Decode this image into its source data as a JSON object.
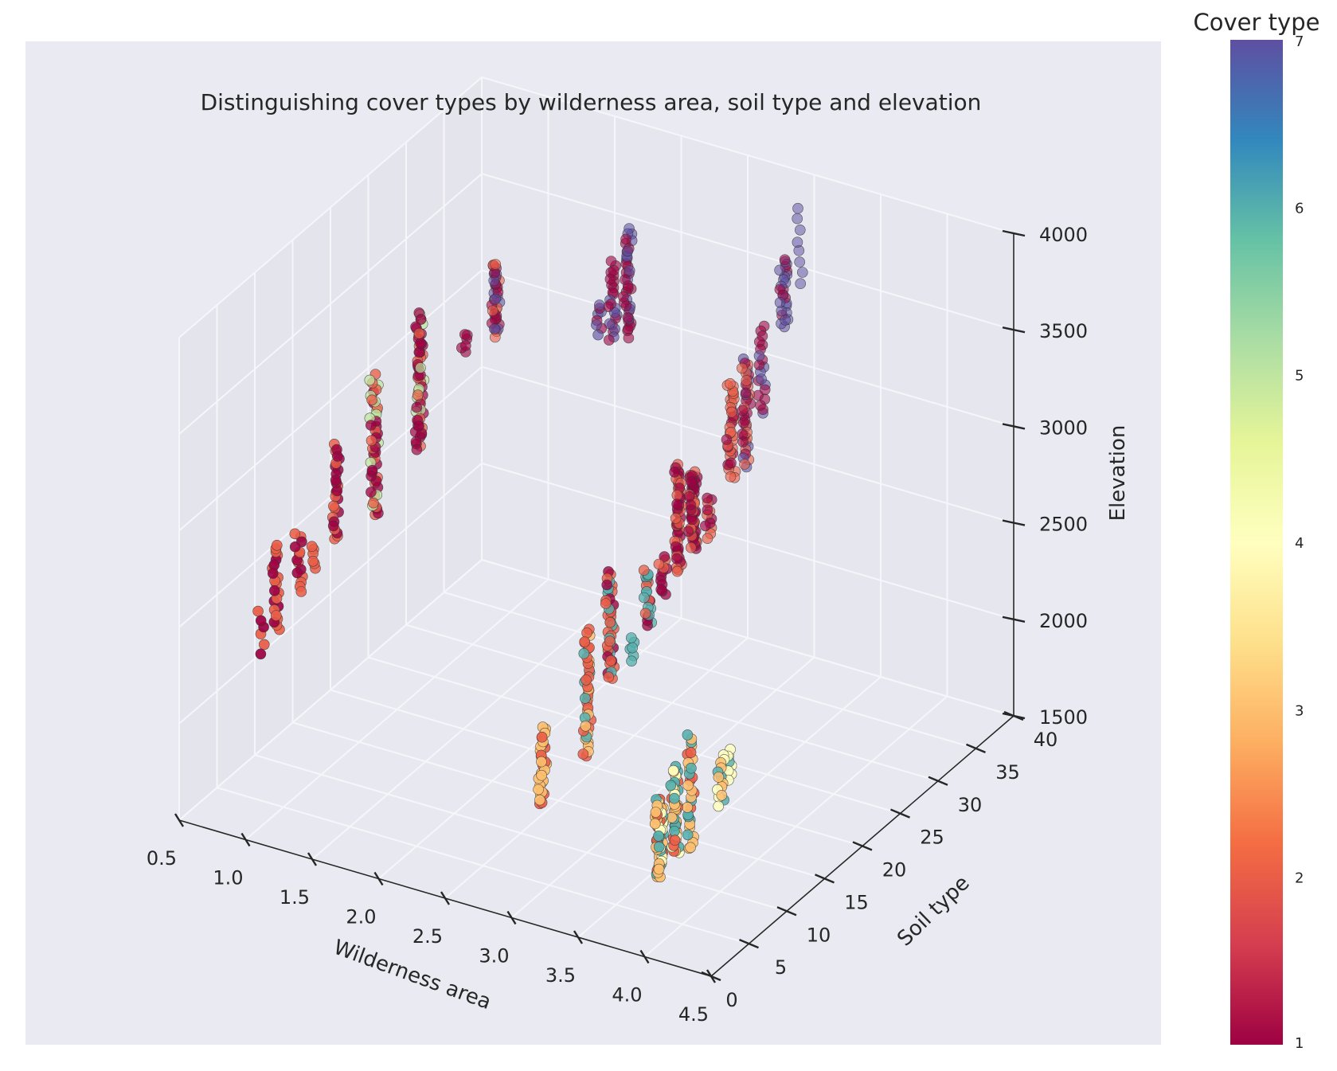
{
  "chart_data": {
    "type": "scatter",
    "title": "Distinguishing cover types by wilderness area, soil type and elevation",
    "xlabel": "Wilderness area",
    "ylabel": "Soil type",
    "zlabel": "Elevation",
    "colorbar_label": "Cover type",
    "xlim": [
      0.5,
      4.5
    ],
    "ylim": [
      0,
      40
    ],
    "zlim": [
      1500,
      4000
    ],
    "clim": [
      1,
      7
    ],
    "x_ticks": [
      "0.5",
      "1.0",
      "1.5",
      "2.0",
      "2.5",
      "3.0",
      "3.5",
      "4.0",
      "4.5"
    ],
    "y_ticks": [
      "0",
      "5",
      "10",
      "15",
      "20",
      "25",
      "30",
      "35",
      "40"
    ],
    "z_ticks": [
      "1500",
      "2000",
      "2500",
      "3000",
      "3500",
      "4000"
    ],
    "colorbar_ticks": [
      "1",
      "2",
      "3",
      "4",
      "5",
      "6",
      "7"
    ],
    "colormap": [
      "#9e0142",
      "#d53e4f",
      "#f46d43",
      "#fdae61",
      "#fee08b",
      "#ffffbf",
      "#e6f598",
      "#abdda4",
      "#66c2a5",
      "#3288bd",
      "#5e4fa2"
    ],
    "grid": true,
    "clusters": [
      {
        "wilderness": 1,
        "soil": 2,
        "elev_min": 2400,
        "elev_max": 2620,
        "cover": [
          1,
          2
        ],
        "n": 6
      },
      {
        "wilderness": 1,
        "soil": 4,
        "elev_min": 2450,
        "elev_max": 2900,
        "cover": [
          2,
          1
        ],
        "n": 22
      },
      {
        "wilderness": 1,
        "soil": 7,
        "elev_min": 2550,
        "elev_max": 2850,
        "cover": [
          2,
          1
        ],
        "n": 14
      },
      {
        "wilderness": 1,
        "soil": 9,
        "elev_min": 2600,
        "elev_max": 2720,
        "cover": [
          2
        ],
        "n": 6
      },
      {
        "wilderness": 1,
        "soil": 12,
        "elev_min": 2650,
        "elev_max": 3150,
        "cover": [
          1,
          2
        ],
        "n": 26
      },
      {
        "wilderness": 1,
        "soil": 17,
        "elev_min": 2600,
        "elev_max": 3330,
        "cover": [
          1,
          2,
          5
        ],
        "n": 45
      },
      {
        "wilderness": 1,
        "soil": 23,
        "elev_min": 2750,
        "elev_max": 3450,
        "cover": [
          1,
          2,
          5
        ],
        "n": 55
      },
      {
        "wilderness": 1,
        "soil": 29,
        "elev_min": 3050,
        "elev_max": 3150,
        "cover": [
          1
        ],
        "n": 6
      },
      {
        "wilderness": 1,
        "soil": 33,
        "elev_min": 3000,
        "elev_max": 3380,
        "cover": [
          1,
          2,
          7
        ],
        "n": 35
      },
      {
        "wilderness": 2,
        "soil": 29,
        "elev_min": 3350,
        "elev_max": 3500,
        "cover": [
          7,
          1
        ],
        "n": 8
      },
      {
        "wilderness": 2,
        "soil": 31,
        "elev_min": 3250,
        "elev_max": 3650,
        "cover": [
          1,
          7
        ],
        "n": 24
      },
      {
        "wilderness": 2,
        "soil": 33,
        "elev_min": 3200,
        "elev_max": 3750,
        "cover": [
          1,
          7
        ],
        "n": 38
      },
      {
        "wilderness": 3,
        "soil": 4,
        "elev_min": 1950,
        "elev_max": 2350,
        "cover": [
          3,
          2
        ],
        "n": 30
      },
      {
        "wilderness": 3,
        "soil": 10,
        "elev_min": 2000,
        "elev_max": 2650,
        "cover": [
          2,
          3,
          6
        ],
        "n": 40
      },
      {
        "wilderness": 3,
        "soil": 13,
        "elev_min": 2300,
        "elev_max": 2850,
        "cover": [
          2,
          1,
          6
        ],
        "n": 40
      },
      {
        "wilderness": 3,
        "soil": 16,
        "elev_min": 2300,
        "elev_max": 2420,
        "cover": [
          6
        ],
        "n": 6
      },
      {
        "wilderness": 3,
        "soil": 18,
        "elev_min": 2400,
        "elev_max": 2700,
        "cover": [
          6,
          1,
          2
        ],
        "n": 20
      },
      {
        "wilderness": 3,
        "soil": 20,
        "elev_min": 2500,
        "elev_max": 2700,
        "cover": [
          1,
          2
        ],
        "n": 12
      },
      {
        "wilderness": 3,
        "soil": 22,
        "elev_min": 2550,
        "elev_max": 3100,
        "cover": [
          1,
          2
        ],
        "n": 45
      },
      {
        "wilderness": 3,
        "soil": 24,
        "elev_min": 2600,
        "elev_max": 3000,
        "cover": [
          1,
          2
        ],
        "n": 50
      },
      {
        "wilderness": 3,
        "soil": 26,
        "elev_min": 2600,
        "elev_max": 2800,
        "cover": [
          1,
          2
        ],
        "n": 12
      },
      {
        "wilderness": 3,
        "soil": 29,
        "elev_min": 2800,
        "elev_max": 3300,
        "cover": [
          2,
          1
        ],
        "n": 35
      },
      {
        "wilderness": 3,
        "soil": 31,
        "elev_min": 2800,
        "elev_max": 3350,
        "cover": [
          1,
          2,
          7
        ],
        "n": 38
      },
      {
        "wilderness": 3,
        "soil": 33,
        "elev_min": 3000,
        "elev_max": 3450,
        "cover": [
          1,
          7
        ],
        "n": 20
      },
      {
        "wilderness": 3,
        "soil": 36,
        "elev_min": 3350,
        "elev_max": 3700,
        "cover": [
          7,
          1
        ],
        "n": 26
      },
      {
        "wilderness": 3,
        "soil": 38,
        "elev_min": 3500,
        "elev_max": 3900,
        "cover": [
          7
        ],
        "n": 8
      },
      {
        "wilderness": 4,
        "soil": 2,
        "elev_min": 1850,
        "elev_max": 2250,
        "cover": [
          3,
          6,
          4,
          2
        ],
        "n": 60
      },
      {
        "wilderness": 4,
        "soil": 4,
        "elev_min": 1900,
        "elev_max": 2350,
        "cover": [
          3,
          6,
          2,
          4
        ],
        "n": 45
      },
      {
        "wilderness": 4,
        "soil": 6,
        "elev_min": 1850,
        "elev_max": 2450,
        "cover": [
          3,
          2,
          6
        ],
        "n": 30
      },
      {
        "wilderness": 4,
        "soil": 10,
        "elev_min": 1950,
        "elev_max": 2200,
        "cover": [
          6,
          4,
          3
        ],
        "n": 14
      },
      {
        "wilderness": 4,
        "soil": 11,
        "elev_min": 2050,
        "elev_max": 2200,
        "cover": [
          4,
          2,
          6
        ],
        "n": 8
      }
    ]
  }
}
